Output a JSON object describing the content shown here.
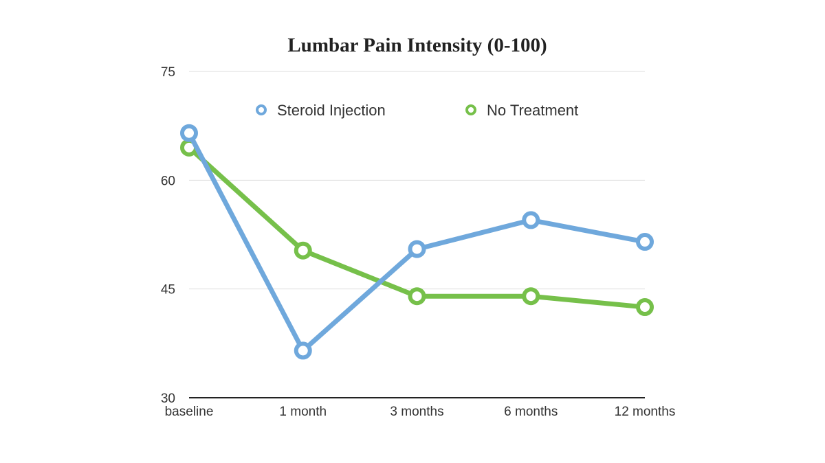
{
  "chart_data": {
    "type": "line",
    "title": "Lumbar Pain Intensity (0-100)",
    "categories": [
      "baseline",
      "1 month",
      "3 months",
      "6 months",
      "12 months"
    ],
    "ylim": [
      30,
      75
    ],
    "yticks": [
      "30",
      "45",
      "60",
      "75"
    ],
    "grid": true,
    "legend_position": "top",
    "series": [
      {
        "name": "Steroid Injection",
        "color": "#6fa8dc",
        "values": [
          66.5,
          36.5,
          50.5,
          54.5,
          51.5
        ]
      },
      {
        "name": "No Treatment",
        "color": "#76c04a",
        "values": [
          64.5,
          50.3,
          44,
          44,
          42.5
        ]
      }
    ]
  }
}
